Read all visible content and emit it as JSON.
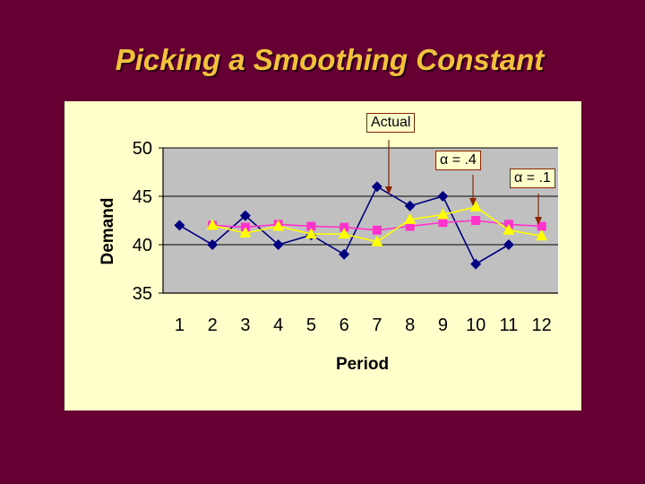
{
  "slide": {
    "title": "Picking a Smoothing Constant"
  },
  "callouts": {
    "actual": "Actual",
    "alpha_04": "α = .4",
    "alpha_01": "α = .1"
  },
  "colors": {
    "background": "#660033",
    "title": "#f2c23c",
    "panel": "#ffffcc",
    "plot_area": "#c0c0c0",
    "actual": "#000080",
    "alpha_04": "#ffff00",
    "alpha_01": "#ff33cc",
    "callout_border": "#8b2500"
  },
  "chart_data": {
    "type": "line",
    "title": "",
    "xlabel": "Period",
    "ylabel": "Demand",
    "ylim": [
      35,
      50
    ],
    "yticks": [
      35,
      40,
      45,
      50
    ],
    "grid": true,
    "categories": [
      "1",
      "2",
      "3",
      "4",
      "5",
      "6",
      "7",
      "8",
      "9",
      "10",
      "11",
      "12"
    ],
    "series": [
      {
        "name": "Actual",
        "marker": "diamond",
        "color": "#000080",
        "values": [
          42,
          40,
          43,
          40,
          41,
          39,
          46,
          44,
          45,
          38,
          40,
          null
        ]
      },
      {
        "name": "α = .1",
        "marker": "square",
        "color": "#ff33cc",
        "values": [
          null,
          42.0,
          41.8,
          42.1,
          41.9,
          41.8,
          41.5,
          41.9,
          42.3,
          42.5,
          42.1,
          41.9
        ]
      },
      {
        "name": "α = .4",
        "marker": "triangle",
        "color": "#ffff00",
        "values": [
          null,
          42.0,
          41.2,
          41.9,
          41.1,
          41.1,
          40.3,
          42.6,
          43.1,
          43.9,
          41.5,
          40.9
        ]
      }
    ]
  }
}
